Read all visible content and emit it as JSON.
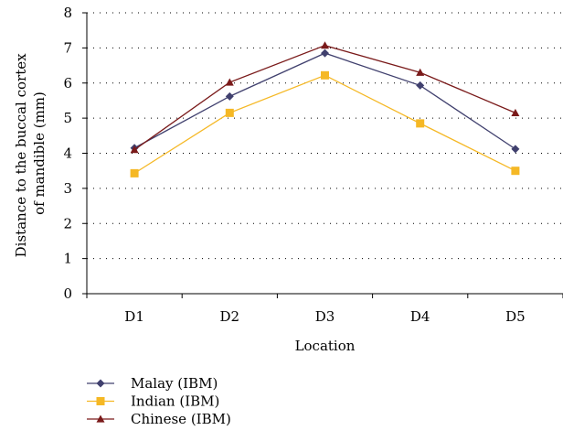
{
  "chart_data": {
    "type": "line",
    "categories": [
      "D1",
      "D2",
      "D3",
      "D4",
      "D5"
    ],
    "series": [
      {
        "name": "Malay (IBM)",
        "values": [
          4.15,
          5.62,
          6.85,
          5.93,
          4.12
        ],
        "color": "#40406e",
        "marker": "diamond"
      },
      {
        "name": "Indian (IBM)",
        "values": [
          3.43,
          5.15,
          6.22,
          4.85,
          3.5
        ],
        "color": "#f5b825",
        "marker": "square"
      },
      {
        "name": "Chinese (IBM)",
        "values": [
          4.1,
          6.02,
          7.07,
          6.3,
          5.15
        ],
        "color": "#7a1a1a",
        "marker": "triangle"
      }
    ],
    "xlabel": "Location",
    "ylabel": [
      "Distance to the buccal cortex",
      "of mandible (mm)"
    ],
    "ylim": [
      0,
      8
    ],
    "yticks": [
      "0",
      "1",
      "2",
      "3",
      "4",
      "5",
      "6",
      "7",
      "8"
    ],
    "grid": true,
    "legend_position": "bottom-left"
  }
}
